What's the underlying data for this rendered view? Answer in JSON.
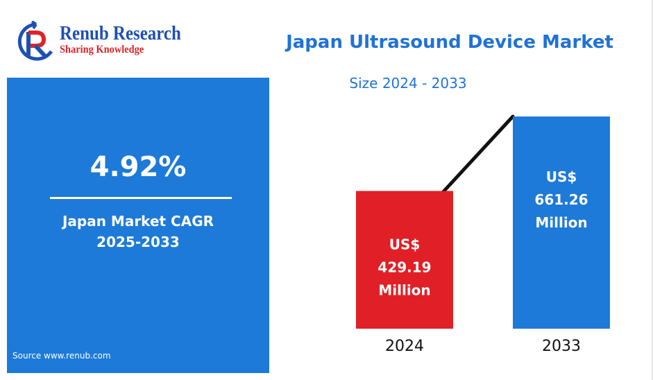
{
  "brand": {
    "name": "Renub Research",
    "tagline": "Sharing Knowledge"
  },
  "title": "Japan Ultrasound Device Market",
  "subtitle": "Size 2024 - 2033",
  "cagr": {
    "value": "4.92%",
    "label_line1": "Japan Market CAGR",
    "label_line2": "2025-2033"
  },
  "source": "Source  www.renub.com",
  "colors": {
    "accent_blue": "#1d7ad8",
    "title_blue": "#1f72d6",
    "bar_2024": "#e02026",
    "bar_2033": "#1d7ad8",
    "logo_red": "#e0232a",
    "logo_blue": "#1f4fb5"
  },
  "chart_data": {
    "type": "bar",
    "categories": [
      "2024",
      "2033"
    ],
    "values": [
      429.19,
      661.26
    ],
    "bar_colors": [
      "#e02026",
      "#1d7ad8"
    ],
    "data_labels": [
      [
        "US$",
        "429.19",
        "Million"
      ],
      [
        "US$",
        "661.26",
        "Million"
      ]
    ],
    "unit": "US$ Million",
    "connector_line": true
  }
}
